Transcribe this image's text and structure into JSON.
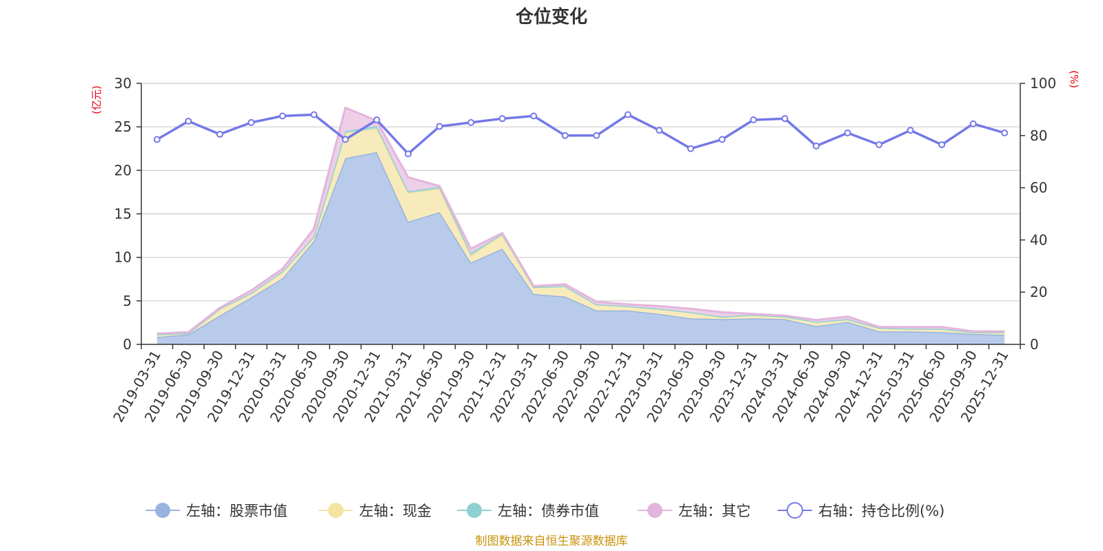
{
  "chart_data": {
    "type": "area",
    "title": "仓位变化",
    "left_axis": {
      "unit": "(亿元)",
      "ylim": [
        0,
        30
      ],
      "ticks": [
        0,
        5,
        10,
        15,
        20,
        25,
        30
      ]
    },
    "right_axis": {
      "unit": "(%)",
      "ylim": [
        0,
        100
      ],
      "ticks": [
        0,
        20,
        40,
        60,
        80,
        100
      ]
    },
    "categories": [
      "2019-03-31",
      "2019-06-30",
      "2019-09-30",
      "2019-12-31",
      "2020-03-31",
      "2020-06-30",
      "2020-09-30",
      "2020-12-31",
      "2021-03-31",
      "2021-06-30",
      "2021-09-30",
      "2021-12-31",
      "2022-03-31",
      "2022-06-30",
      "2022-09-30",
      "2022-12-31",
      "2023-03-31",
      "2023-06-30",
      "2023-09-30",
      "2023-12-31",
      "2024-03-31",
      "2024-06-30",
      "2024-09-30",
      "2024-12-31",
      "2025-03-31",
      "2025-06-30",
      "2025-09-30",
      "2025-12-31"
    ],
    "series": [
      {
        "name": "左轴：股票市值",
        "axis": "left",
        "type": "stacked-area",
        "color": "#98b3e0",
        "fill": "#b8cbea",
        "values": [
          0.85,
          1.15,
          3.3,
          5.4,
          7.6,
          11.9,
          21.4,
          22.1,
          14.1,
          15.2,
          9.4,
          11.0,
          5.8,
          5.5,
          3.9,
          3.9,
          3.5,
          3.0,
          2.9,
          3.0,
          2.9,
          2.1,
          2.6,
          1.5,
          1.5,
          1.4,
          1.2,
          1.1
        ]
      },
      {
        "name": "左轴：现金",
        "axis": "left",
        "type": "stacked-area",
        "color": "#f5e3a0",
        "fill": "#f8ebbb",
        "values": [
          0.3,
          0.15,
          0.8,
          0.5,
          0.8,
          0.5,
          2.9,
          2.7,
          3.3,
          2.7,
          0.8,
          1.6,
          0.8,
          1.2,
          0.7,
          0.5,
          0.6,
          0.7,
          0.2,
          0.4,
          0.3,
          0.5,
          0.3,
          0.4,
          0.3,
          0.4,
          0.2,
          0.3
        ]
      },
      {
        "name": "左轴：债券市值",
        "axis": "left",
        "type": "stacked-area",
        "color": "#8fd1d1",
        "fill": "#a9dddd",
        "values": [
          0,
          0,
          0,
          0,
          0,
          0,
          0.2,
          0.3,
          0.2,
          0.2,
          0.3,
          0.1,
          0,
          0,
          0,
          0,
          0,
          0,
          0.1,
          0,
          0,
          0,
          0,
          0,
          0,
          0,
          0,
          0
        ]
      },
      {
        "name": "左轴：其它",
        "axis": "left",
        "type": "stacked-area",
        "color": "#e3b5dc",
        "fill": "#edcfe8",
        "values": [
          0.1,
          0.1,
          0.1,
          0.3,
          0.3,
          0.9,
          2.7,
          0.6,
          1.6,
          0.1,
          0.5,
          0.1,
          0.1,
          0.2,
          0.3,
          0.2,
          0.3,
          0.4,
          0.5,
          0.1,
          0.1,
          0.2,
          0.3,
          0.1,
          0.2,
          0.2,
          0.1,
          0.1
        ]
      },
      {
        "name": "右轴：持仓比例(%)",
        "axis": "right",
        "type": "line",
        "color": "#7478e8",
        "values": [
          78.5,
          85.5,
          80.5,
          85.0,
          87.5,
          88.0,
          78.5,
          86.0,
          73.0,
          83.5,
          85.0,
          86.5,
          87.5,
          80.0,
          80.0,
          88.0,
          82.0,
          75.0,
          78.5,
          86.0,
          86.5,
          76.0,
          81.0,
          76.5,
          82.0,
          76.5,
          84.5,
          81.0
        ]
      }
    ],
    "legend_position": "bottom",
    "grid": true
  },
  "source_note": "制图数据来自恒生聚源数据库"
}
